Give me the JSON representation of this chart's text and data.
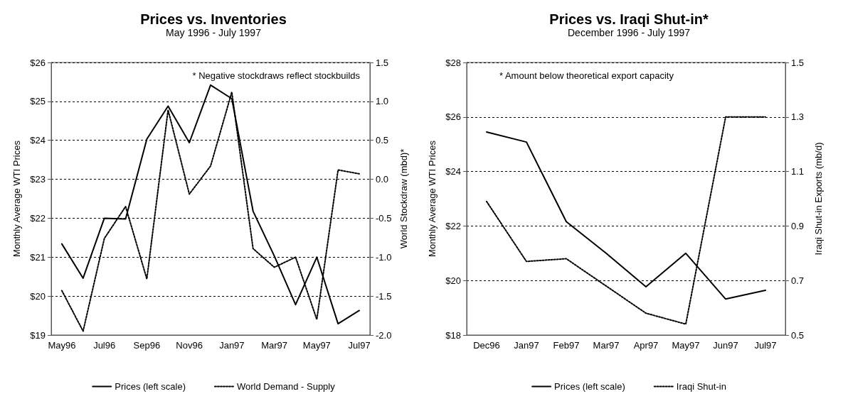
{
  "chart_data": [
    {
      "type": "line",
      "title": "Prices vs. Inventories",
      "subtitle": "May 1996 - July 1997",
      "ylabel": "Monthly Average WTI Prices",
      "y2label": "World Stockdraw (mbd)*",
      "annotations": [
        "* Negative stockdraws reflect stockbuilds"
      ],
      "categories": [
        "May96",
        null,
        "Jul96",
        null,
        "Sep96",
        null,
        "Nov96",
        null,
        "Jan97",
        null,
        "Mar97",
        null,
        "May97",
        null,
        "Jul97"
      ],
      "series": [
        {
          "name": "Prices (left scale)",
          "color": "#000000",
          "line_style": "solid",
          "values": [
            21.34,
            20.46,
            22.0,
            21.98,
            24.03,
            24.88,
            23.94,
            25.42,
            25.07,
            22.18,
            21.03,
            19.78,
            21.0,
            19.29,
            19.63
          ]
        },
        {
          "name": "World Demand - Supply",
          "color": "#000000",
          "line_style": "dotted",
          "axis": "y2",
          "values": [
            -1.43,
            -1.95,
            -0.76,
            -0.35,
            -1.28,
            0.89,
            -0.19,
            0.17,
            1.12,
            -0.89,
            -1.13,
            -1.0,
            -1.8,
            0.12,
            0.07
          ]
        }
      ],
      "ylim": [
        19,
        26
      ],
      "yticks": [
        {
          "value": 19,
          "label": "$19"
        },
        {
          "value": 20,
          "label": "$20"
        },
        {
          "value": 21,
          "label": "$21"
        },
        {
          "value": 22,
          "label": "$22"
        },
        {
          "value": 23,
          "label": "$23"
        },
        {
          "value": 24,
          "label": "$24"
        },
        {
          "value": 25,
          "label": "$25"
        },
        {
          "value": 26,
          "label": "$26"
        }
      ],
      "y2lim": [
        -2.0,
        1.5
      ],
      "y2ticks": [
        {
          "value": -2.0,
          "label": "-2.0"
        },
        -1.5,
        {
          "value": -1.0,
          "label": "-1.0"
        },
        -0.5,
        {
          "value": 0,
          "label": "0.0"
        },
        0.5,
        {
          "value": 1.0,
          "label": "1.0"
        },
        1.5
      ],
      "grid": "y",
      "legend": "bottom",
      "marker": "none"
    },
    {
      "type": "line",
      "title": "Prices vs. Iraqi Shut-in*",
      "subtitle": "December 1996 - July 1997",
      "ylabel": "Monthly Average WTI Prices",
      "y2label": "Iraqi Shut-in Exports (mb/d)",
      "annotations": [
        "* Amount below theoretical export capacity"
      ],
      "categories": [
        "Dec96",
        "Jan97",
        "Feb97",
        "Mar97",
        "Apr97",
        "May97",
        "Jun97",
        "Jul97"
      ],
      "series": [
        {
          "name": "Prices (left scale)",
          "color": "#000000",
          "line_style": "solid",
          "values": [
            25.45,
            25.08,
            22.16,
            21.0,
            19.77,
            21.0,
            19.32,
            19.64
          ]
        },
        {
          "name": "Iraqi Shut-in",
          "color": "#000000",
          "line_style": "dotted",
          "axis": "y2",
          "values": [
            0.99,
            0.77,
            0.78,
            0.68,
            0.58,
            0.54,
            1.3,
            1.3
          ]
        }
      ],
      "ylim": [
        18,
        28
      ],
      "yticks": [
        {
          "value": 18,
          "label": "$18"
        },
        {
          "value": 20,
          "label": "$20"
        },
        {
          "value": 22,
          "label": "$22"
        },
        {
          "value": 24,
          "label": "$24"
        },
        {
          "value": 26,
          "label": "$26"
        },
        {
          "value": 28,
          "label": "$28"
        }
      ],
      "y2lim": [
        0.5,
        1.5
      ],
      "y2ticks": [
        0.5,
        0.7,
        0.9,
        1.1,
        1.3,
        1.5
      ],
      "grid": "y",
      "legend": "bottom",
      "marker": "none"
    }
  ]
}
